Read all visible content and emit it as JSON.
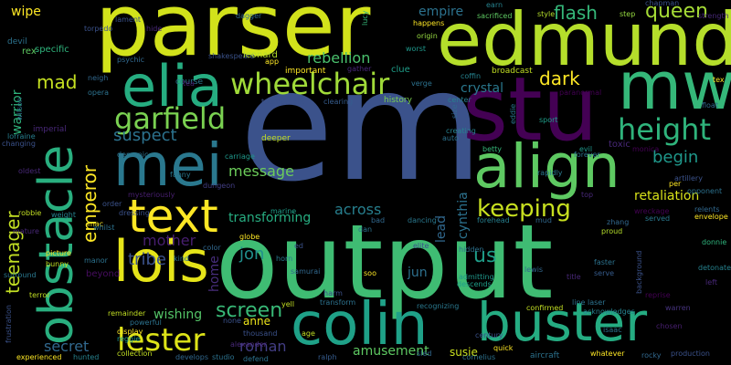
{
  "words": [
    {
      "text": "output",
      "color": "#3fbc73",
      "vertical": false
    },
    {
      "text": "em",
      "color": "#3b528b",
      "vertical": false
    },
    {
      "text": "parser",
      "color": "#d2e21b",
      "vertical": false
    },
    {
      "text": "edmund",
      "color": "#b5de2b",
      "vertical": false
    },
    {
      "text": "stu",
      "color": "#440154",
      "vertical": false
    },
    {
      "text": "mw",
      "color": "#35b779",
      "vertical": false
    },
    {
      "text": "elia",
      "color": "#26ad81",
      "vertical": false
    },
    {
      "text": "obstacle",
      "color": "#29af7f",
      "vertical": true
    },
    {
      "text": "align",
      "color": "#5ec962",
      "vertical": false
    },
    {
      "text": "mei",
      "color": "#2a788e",
      "vertical": false
    },
    {
      "text": "lois",
      "color": "#e5e419",
      "vertical": false
    },
    {
      "text": "colin",
      "color": "#1fa188",
      "vertical": false
    },
    {
      "text": "buster",
      "color": "#25ac82",
      "vertical": false
    },
    {
      "text": "text",
      "color": "#fde725",
      "vertical": false
    },
    {
      "text": "wheelchair",
      "color": "#a0da39",
      "vertical": false
    },
    {
      "text": "garfield",
      "color": "#7ad151",
      "vertical": false
    },
    {
      "text": "height",
      "color": "#2fb47c",
      "vertical": false
    },
    {
      "text": "lester",
      "color": "#dde318",
      "vertical": false
    },
    {
      "text": "keeping",
      "color": "#c8e020",
      "vertical": false
    },
    {
      "text": "suspect",
      "color": "#2c728e",
      "vertical": false
    },
    {
      "text": "screen",
      "color": "#38b977",
      "vertical": false
    },
    {
      "text": "teenager",
      "color": "#c2df23",
      "vertical": true
    },
    {
      "text": "emperor",
      "color": "#fde725",
      "vertical": true
    },
    {
      "text": "dark",
      "color": "#fde725",
      "vertical": false
    },
    {
      "text": "flash",
      "color": "#35b779",
      "vertical": false
    },
    {
      "text": "queen",
      "color": "#a5db36",
      "vertical": false
    },
    {
      "text": "mad",
      "color": "#c5e021",
      "vertical": false
    },
    {
      "text": "rebellion",
      "color": "#4ac16d",
      "vertical": false
    },
    {
      "text": "message",
      "color": "#6ccd5a",
      "vertical": false
    },
    {
      "text": "across",
      "color": "#277f8e",
      "vertical": false
    },
    {
      "text": "us",
      "color": "#1f9e89",
      "vertical": false
    },
    {
      "text": "mother",
      "color": "#481f70",
      "vertical": false
    },
    {
      "text": "tribe",
      "color": "#3b528b",
      "vertical": false
    },
    {
      "text": "jon",
      "color": "#218f8d",
      "vertical": false
    },
    {
      "text": "roman",
      "color": "#433e85",
      "vertical": false
    },
    {
      "text": "secret",
      "color": "#31688e",
      "vertical": false
    },
    {
      "text": "begin",
      "color": "#1f988b",
      "vertical": false
    },
    {
      "text": "cynthia",
      "color": "#2c728e",
      "vertical": true
    },
    {
      "text": "crystal",
      "color": "#2a788e",
      "vertical": false
    },
    {
      "text": "warrior",
      "color": "#2fb47c",
      "vertical": true
    },
    {
      "text": "wishing",
      "color": "#54c568",
      "vertical": false
    },
    {
      "text": "transforming",
      "color": "#27ad81",
      "vertical": false
    },
    {
      "text": "home",
      "color": "#472d7b",
      "vertical": true
    },
    {
      "text": "amusement",
      "color": "#5ec962",
      "vertical": false
    },
    {
      "text": "susie",
      "color": "#cae11f",
      "vertical": false
    },
    {
      "text": "jun",
      "color": "#2d708e",
      "vertical": false
    },
    {
      "text": "anne",
      "color": "#ece51b",
      "vertical": false
    },
    {
      "text": "beyond",
      "color": "#470d60",
      "vertical": false
    },
    {
      "text": "empire",
      "color": "#2c728e",
      "vertical": false
    },
    {
      "text": "retaliation",
      "color": "#d8e219",
      "vertical": false
    },
    {
      "text": "wipe",
      "color": "#fde725",
      "vertical": false
    },
    {
      "text": "lead",
      "color": "#31688e",
      "vertical": true
    },
    {
      "text": "rex",
      "color": "#5ec962",
      "vertical": false
    },
    {
      "text": "devil",
      "color": "#2c728e",
      "vertical": false
    },
    {
      "text": "specific",
      "color": "#2fb47c",
      "vertical": false
    },
    {
      "text": "shakespeare",
      "color": "#3b528b",
      "vertical": false
    },
    {
      "text": "leonard",
      "color": "#b5de2b",
      "vertical": false
    },
    {
      "text": "important",
      "color": "#fde725",
      "vertical": false
    },
    {
      "text": "clue",
      "color": "#1f9e89",
      "vertical": false
    },
    {
      "text": "history",
      "color": "#7ad151",
      "vertical": false
    },
    {
      "text": "coffin",
      "color": "#26828e",
      "vertical": false
    },
    {
      "text": "broadcast",
      "color": "#c2df23",
      "vertical": false
    },
    {
      "text": "paranormal",
      "color": "#440154",
      "vertical": false
    },
    {
      "text": "strength",
      "color": "#482878",
      "vertical": false
    },
    {
      "text": "origin",
      "color": "#95d840",
      "vertical": false
    },
    {
      "text": "worst",
      "color": "#1f988b",
      "vertical": false
    },
    {
      "text": "happens",
      "color": "#fde725",
      "vertical": false
    },
    {
      "text": "sacrificed",
      "color": "#5ec962",
      "vertical": false
    },
    {
      "text": "style",
      "color": "#b5de2b",
      "vertical": false
    },
    {
      "text": "step",
      "color": "#95d840",
      "vertical": false
    },
    {
      "text": "earn",
      "color": "#26828e",
      "vertical": false
    },
    {
      "text": "dagger",
      "color": "#31688e",
      "vertical": false
    },
    {
      "text": "lucy",
      "color": "#35b779",
      "vertical": true
    },
    {
      "text": "course",
      "color": "#2a788e",
      "vertical": false
    },
    {
      "text": "gather",
      "color": "#482878",
      "vertical": false
    },
    {
      "text": "tournament",
      "color": "#3b528b",
      "vertical": false
    },
    {
      "text": "clearing",
      "color": "#365c8d",
      "vertical": false
    },
    {
      "text": "tea",
      "color": "#481f70",
      "vertical": false
    },
    {
      "text": "psychic",
      "color": "#31688e",
      "vertical": false
    },
    {
      "text": "opera",
      "color": "#2c728e",
      "vertical": false
    },
    {
      "text": "imperial",
      "color": "#482878",
      "vertical": false
    },
    {
      "text": "lorraine",
      "color": "#277f8e",
      "vertical": false
    },
    {
      "text": "changing",
      "color": "#3b528b",
      "vertical": false
    },
    {
      "text": "demonic",
      "color": "#2c728e",
      "vertical": false
    },
    {
      "text": "carriage",
      "color": "#1f988b",
      "vertical": false
    },
    {
      "text": "fanny",
      "color": "#2a788e",
      "vertical": false
    },
    {
      "text": "mysteriously",
      "color": "#481f70",
      "vertical": false
    },
    {
      "text": "dungeon",
      "color": "#433e85",
      "vertical": false
    },
    {
      "text": "deeper",
      "color": "#c2df23",
      "vertical": false
    },
    {
      "text": "marine",
      "color": "#1f9e89",
      "vertical": false
    },
    {
      "text": "creating",
      "color": "#26828e",
      "vertical": false
    },
    {
      "text": "auto",
      "color": "#2c728e",
      "vertical": false
    },
    {
      "text": "betty",
      "color": "#35b779",
      "vertical": false
    },
    {
      "text": "eddie",
      "color": "#2a788e",
      "vertical": true
    },
    {
      "text": "sport",
      "color": "#1f9e89",
      "vertical": false
    },
    {
      "text": "center",
      "color": "#277f8e",
      "vertical": false
    },
    {
      "text": "evil",
      "color": "#1f988b",
      "vertical": false
    },
    {
      "text": "forever",
      "color": "#2c728e",
      "vertical": false
    },
    {
      "text": "toxic",
      "color": "#482878",
      "vertical": false
    },
    {
      "text": "monica",
      "color": "#440154",
      "vertical": false
    },
    {
      "text": "rapidly",
      "color": "#2a788e",
      "vertical": false
    },
    {
      "text": "artillery",
      "color": "#3b528b",
      "vertical": false
    },
    {
      "text": "per",
      "color": "#fde725",
      "vertical": false
    },
    {
      "text": "opponent",
      "color": "#2c728e",
      "vertical": false
    },
    {
      "text": "relents",
      "color": "#31688e",
      "vertical": false
    },
    {
      "text": "envelope",
      "color": "#fde725",
      "vertical": false
    },
    {
      "text": "served",
      "color": "#2a788e",
      "vertical": false
    },
    {
      "text": "wreckage",
      "color": "#440154",
      "vertical": false
    },
    {
      "text": "zhang",
      "color": "#31688e",
      "vertical": false
    },
    {
      "text": "proud",
      "color": "#b5de2b",
      "vertical": false
    },
    {
      "text": "donnie",
      "color": "#2fb47c",
      "vertical": false
    },
    {
      "text": "faster",
      "color": "#2c728e",
      "vertical": false
    },
    {
      "text": "serve",
      "color": "#365c8d",
      "vertical": false
    },
    {
      "text": "detonates",
      "color": "#26828e",
      "vertical": false
    },
    {
      "text": "left",
      "color": "#482878",
      "vertical": false
    },
    {
      "text": "reprise",
      "color": "#440154",
      "vertical": false
    },
    {
      "text": "warren",
      "color": "#46337e",
      "vertical": false
    },
    {
      "text": "line laser",
      "color": "#2c728e",
      "vertical": false
    },
    {
      "text": "confirmed",
      "color": "#c2df23",
      "vertical": false
    },
    {
      "text": "acknowledges",
      "color": "#26828e",
      "vertical": false
    },
    {
      "text": "century",
      "color": "#3b528b",
      "vertical": false
    },
    {
      "text": "quick",
      "color": "#fde725",
      "vertical": false
    },
    {
      "text": "aircraft",
      "color": "#2c728e",
      "vertical": false
    },
    {
      "text": "whatever",
      "color": "#fde725",
      "vertical": false
    },
    {
      "text": "rocky",
      "color": "#31688e",
      "vertical": false
    },
    {
      "text": "production",
      "color": "#3b528b",
      "vertical": false
    },
    {
      "text": "chosen",
      "color": "#481f70",
      "vertical": false
    },
    {
      "text": "experienced",
      "color": "#fde725",
      "vertical": false
    },
    {
      "text": "hunted",
      "color": "#26828e",
      "vertical": false
    },
    {
      "text": "collection",
      "color": "#c2df23",
      "vertical": false
    },
    {
      "text": "develops",
      "color": "#31688e",
      "vertical": false
    },
    {
      "text": "studio",
      "color": "#2c728e",
      "vertical": false
    },
    {
      "text": "thousand",
      "color": "#3b528b",
      "vertical": false
    },
    {
      "text": "age",
      "color": "#c2df23",
      "vertical": false
    },
    {
      "text": "ralph",
      "color": "#365c8d",
      "vertical": false
    },
    {
      "text": "sled",
      "color": "#31688e",
      "vertical": false
    },
    {
      "text": "cornelius",
      "color": "#2c728e",
      "vertical": false
    },
    {
      "text": "recognizing",
      "color": "#2a788e",
      "vertical": false
    },
    {
      "text": "lewis",
      "color": "#31688e",
      "vertical": false
    },
    {
      "text": "title",
      "color": "#482878",
      "vertical": false
    },
    {
      "text": "admitting",
      "color": "#1f988b",
      "vertical": false
    },
    {
      "text": "descends",
      "color": "#1f9e89",
      "vertical": false
    },
    {
      "text": "hidden",
      "color": "#2c728e",
      "vertical": false
    },
    {
      "text": "elite",
      "color": "#3b528b",
      "vertical": false
    },
    {
      "text": "dancing",
      "color": "#2a788e",
      "vertical": false
    },
    {
      "text": "forehead",
      "color": "#277f8e",
      "vertical": false
    },
    {
      "text": "mud",
      "color": "#31688e",
      "vertical": false
    },
    {
      "text": "globe",
      "color": "#fde725",
      "vertical": false
    },
    {
      "text": "ed",
      "color": "#3b528b",
      "vertical": false
    },
    {
      "text": "horn",
      "color": "#2a788e",
      "vertical": false
    },
    {
      "text": "samurai",
      "color": "#31688e",
      "vertical": false
    },
    {
      "text": "harm",
      "color": "#3b528b",
      "vertical": false
    },
    {
      "text": "transform",
      "color": "#2c728e",
      "vertical": false
    },
    {
      "text": "yell",
      "color": "#c2df23",
      "vertical": false
    },
    {
      "text": "none",
      "color": "#3b528b",
      "vertical": false
    },
    {
      "text": "defend",
      "color": "#2c728e",
      "vertical": false
    },
    {
      "text": "alexander",
      "color": "#482878",
      "vertical": false
    },
    {
      "text": "display",
      "color": "#fde725",
      "vertical": false
    },
    {
      "text": "remainder",
      "color": "#c2df23",
      "vertical": false
    },
    {
      "text": "powerful",
      "color": "#2c728e",
      "vertical": false
    },
    {
      "text": "reggie",
      "color": "#1f988b",
      "vertical": false
    },
    {
      "text": "frustration",
      "color": "#3b528b",
      "vertical": true
    },
    {
      "text": "surround",
      "color": "#2a788e",
      "vertical": false
    },
    {
      "text": "terror",
      "color": "#c2df23",
      "vertical": false
    },
    {
      "text": "picture",
      "color": "#fde725",
      "vertical": false
    },
    {
      "text": "bunny",
      "color": "#c2df23",
      "vertical": false
    },
    {
      "text": "manor",
      "color": "#2c728e",
      "vertical": false
    },
    {
      "text": "mature",
      "color": "#482878",
      "vertical": false
    },
    {
      "text": "robbie",
      "color": "#c2df23",
      "vertical": false
    },
    {
      "text": "weight",
      "color": "#26828e",
      "vertical": false
    },
    {
      "text": "mac",
      "color": "#fde725",
      "vertical": false
    },
    {
      "text": "whilst",
      "color": "#2c728e",
      "vertical": false
    },
    {
      "text": "order",
      "color": "#3b528b",
      "vertical": false
    },
    {
      "text": "dressing",
      "color": "#3b528b",
      "vertical": false
    },
    {
      "text": "oldest",
      "color": "#482878",
      "vertical": false
    },
    {
      "text": "color",
      "color": "#31688e",
      "vertical": false
    },
    {
      "text": "kind",
      "color": "#2c728e",
      "vertical": false
    },
    {
      "text": "app",
      "color": "#fde725",
      "vertical": false
    },
    {
      "text": "size",
      "color": "#31688e",
      "vertical": true
    },
    {
      "text": "float",
      "color": "#31688e",
      "vertical": false
    },
    {
      "text": "tex",
      "color": "#fde725",
      "vertical": false
    },
    {
      "text": "top",
      "color": "#482878",
      "vertical": false
    },
    {
      "text": "chapman",
      "color": "#3b528b",
      "vertical": false
    },
    {
      "text": "wilson",
      "color": "#2c728e",
      "vertical": true
    },
    {
      "text": "torpedo",
      "color": "#3b528b",
      "vertical": false
    },
    {
      "text": "lament",
      "color": "#3b528b",
      "vertical": false
    },
    {
      "text": "neigh",
      "color": "#31688e",
      "vertical": false
    },
    {
      "text": "hide",
      "color": "#482878",
      "vertical": false
    },
    {
      "text": "background",
      "color": "#3b528b",
      "vertical": true
    },
    {
      "text": "verge",
      "color": "#2c728e",
      "vertical": false
    },
    {
      "text": "bad",
      "color": "#31688e",
      "vertical": false
    },
    {
      "text": "dan",
      "color": "#2c728e",
      "vertical": false
    },
    {
      "text": "soo",
      "color": "#fde725",
      "vertical": false
    },
    {
      "text": "isaac",
      "color": "#2c728e",
      "vertical": false
    }
  ]
}
